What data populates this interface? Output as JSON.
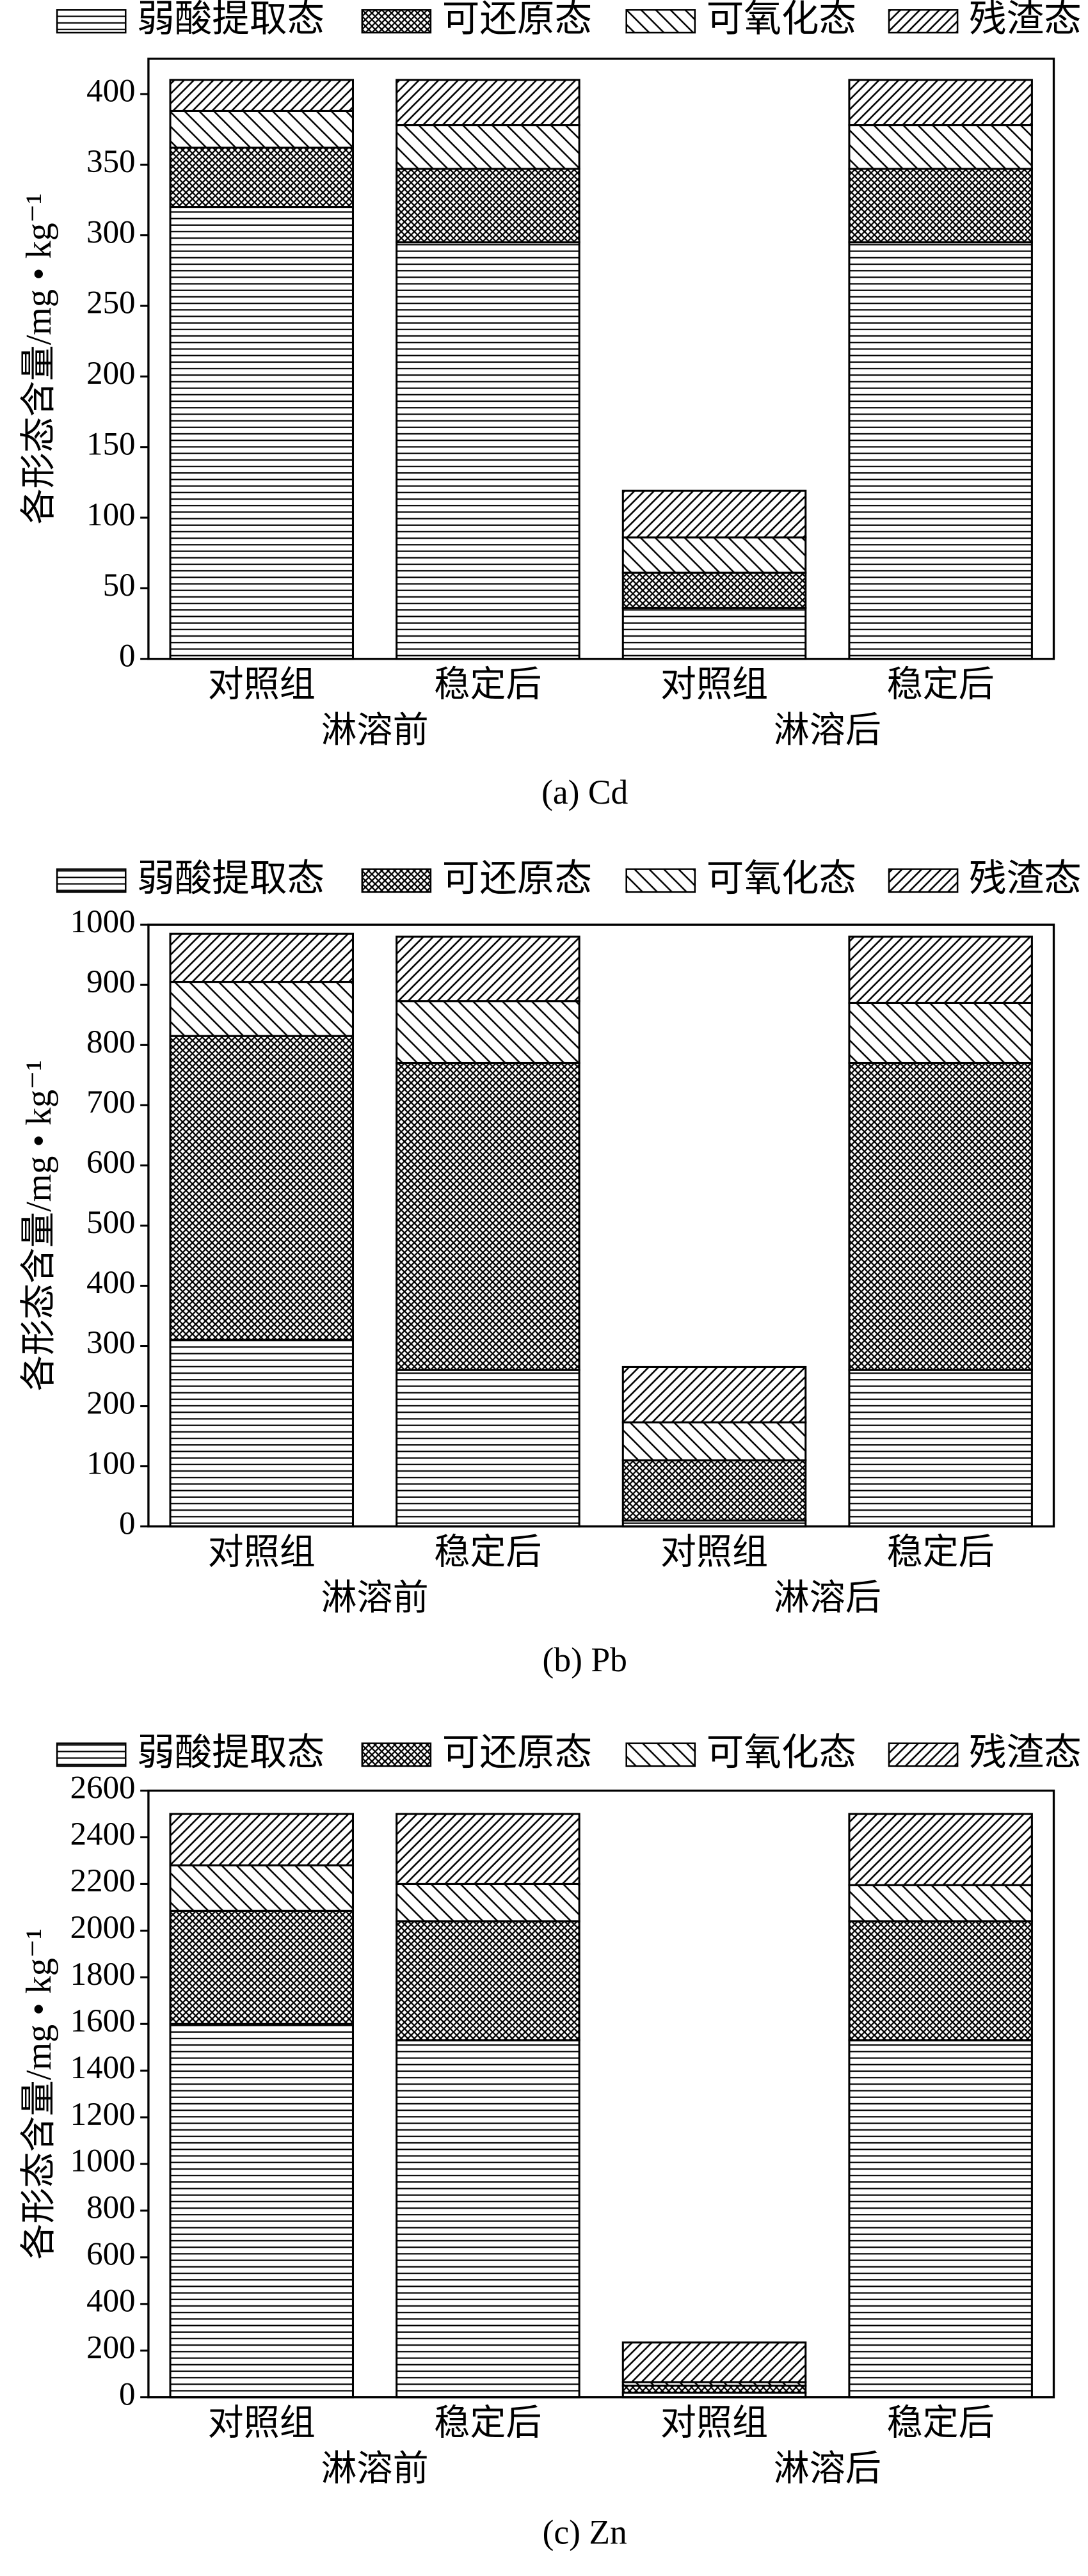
{
  "chart_data": [
    {
      "type": "stacked-bar",
      "caption": "(a) Cd",
      "y_label": "各形态含量/mg • kg⁻¹",
      "categories": [
        "对照组",
        "稳定后",
        "对照组",
        "稳定后"
      ],
      "groups": [
        "淋溶前",
        "淋溶后"
      ],
      "ylim": [
        0,
        425
      ],
      "yticks": [
        0,
        50,
        100,
        150,
        200,
        250,
        300,
        350,
        400
      ],
      "series": [
        {
          "name": "弱酸提取态",
          "color": "#000000",
          "pattern": "horizontal",
          "values": [
            320,
            295,
            36,
            295
          ]
        },
        {
          "name": "可还原态",
          "color": "#000000",
          "pattern": "crosshatch",
          "values": [
            42,
            52,
            25,
            52
          ]
        },
        {
          "name": "可氧化态",
          "color": "#000000",
          "pattern": "backslash",
          "values": [
            26,
            31,
            25,
            31
          ]
        },
        {
          "name": "残渣态",
          "color": "#000000",
          "pattern": "slash",
          "values": [
            22,
            32,
            33,
            32
          ]
        }
      ]
    },
    {
      "type": "stacked-bar",
      "caption": "(b) Pb",
      "y_label": "各形态含量/mg • kg⁻¹",
      "categories": [
        "对照组",
        "稳定后",
        "对照组",
        "稳定后"
      ],
      "groups": [
        "淋溶前",
        "淋溶后"
      ],
      "ylim": [
        0,
        1000
      ],
      "yticks": [
        0,
        100,
        200,
        300,
        400,
        500,
        600,
        700,
        800,
        900,
        1000
      ],
      "series": [
        {
          "name": "弱酸提取态",
          "color": "#000000",
          "pattern": "horizontal",
          "values": [
            310,
            260,
            10,
            260
          ]
        },
        {
          "name": "可还原态",
          "color": "#000000",
          "pattern": "crosshatch",
          "values": [
            505,
            510,
            100,
            510
          ]
        },
        {
          "name": "可氧化态",
          "color": "#000000",
          "pattern": "backslash",
          "values": [
            90,
            103,
            63,
            100
          ]
        },
        {
          "name": "残渣态",
          "color": "#000000",
          "pattern": "slash",
          "values": [
            80,
            107,
            92,
            110
          ]
        }
      ]
    },
    {
      "type": "stacked-bar",
      "caption": "(c) Zn",
      "y_label": "各形态含量/mg • kg⁻¹",
      "categories": [
        "对照组",
        "稳定后",
        "对照组",
        "稳定后"
      ],
      "groups": [
        "淋溶前",
        "淋溶后"
      ],
      "ylim": [
        0,
        2600
      ],
      "yticks": [
        0,
        200,
        400,
        600,
        800,
        1000,
        1200,
        1400,
        1600,
        1800,
        2000,
        2200,
        2400,
        2600
      ],
      "series": [
        {
          "name": "弱酸提取态",
          "color": "#000000",
          "pattern": "horizontal",
          "values": [
            1600,
            1530,
            20,
            1530
          ]
        },
        {
          "name": "可还原态",
          "color": "#000000",
          "pattern": "crosshatch",
          "values": [
            485,
            510,
            30,
            510
          ]
        },
        {
          "name": "可氧化态",
          "color": "#000000",
          "pattern": "backslash",
          "values": [
            195,
            160,
            15,
            155
          ]
        },
        {
          "name": "残渣态",
          "color": "#000000",
          "pattern": "slash",
          "values": [
            220,
            300,
            170,
            305
          ]
        }
      ]
    }
  ]
}
